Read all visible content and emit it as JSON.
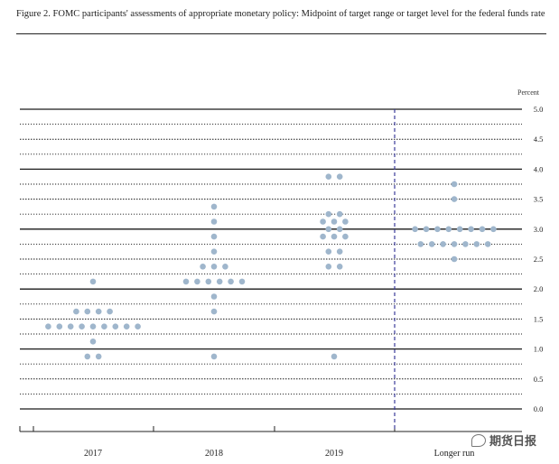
{
  "title": "Figure 2. FOMC participants' assessments of appropriate monetary policy: Midpoint of target range or target level for the federal funds rate",
  "watermark": "期货日报",
  "chart_data": {
    "type": "scatter",
    "unit_label": "Percent",
    "ylim": [
      0,
      5
    ],
    "yticks": [
      "5.0",
      "4.5",
      "4.0",
      "3.5",
      "3.0",
      "2.5",
      "2.0",
      "1.5",
      "1.0",
      "0.5",
      "0.0"
    ],
    "grid": true,
    "legend": "none",
    "dot_color": "#9fb6cc",
    "categories": [
      "2017",
      "2018",
      "2019",
      "Longer run"
    ],
    "series": [
      {
        "points": [
          {
            "x": "2017",
            "y": 2.125,
            "count": 1
          },
          {
            "x": "2017",
            "y": 1.625,
            "count": 4
          },
          {
            "x": "2017",
            "y": 1.375,
            "count": 9
          },
          {
            "x": "2017",
            "y": 1.125,
            "count": 1
          },
          {
            "x": "2017",
            "y": 0.875,
            "count": 2
          },
          {
            "x": "2018",
            "y": 3.375,
            "count": 1
          },
          {
            "x": "2018",
            "y": 3.125,
            "count": 1
          },
          {
            "x": "2018",
            "y": 2.875,
            "count": 1
          },
          {
            "x": "2018",
            "y": 2.625,
            "count": 1
          },
          {
            "x": "2018",
            "y": 2.375,
            "count": 3
          },
          {
            "x": "2018",
            "y": 2.125,
            "count": 6
          },
          {
            "x": "2018",
            "y": 1.875,
            "count": 1
          },
          {
            "x": "2018",
            "y": 1.625,
            "count": 1
          },
          {
            "x": "2018",
            "y": 0.875,
            "count": 1
          },
          {
            "x": "2019",
            "y": 3.875,
            "count": 2
          },
          {
            "x": "2019",
            "y": 3.25,
            "count": 2
          },
          {
            "x": "2019",
            "y": 3.125,
            "count": 3
          },
          {
            "x": "2019",
            "y": 3.0,
            "count": 2
          },
          {
            "x": "2019",
            "y": 2.875,
            "count": 3
          },
          {
            "x": "2019",
            "y": 2.625,
            "count": 2
          },
          {
            "x": "2019",
            "y": 2.375,
            "count": 2
          },
          {
            "x": "2019",
            "y": 0.875,
            "count": 1
          },
          {
            "x": "Longer run",
            "y": 3.75,
            "count": 1
          },
          {
            "x": "Longer run",
            "y": 3.5,
            "count": 1
          },
          {
            "x": "Longer run",
            "y": 3.0,
            "count": 8
          },
          {
            "x": "Longer run",
            "y": 2.75,
            "count": 7
          },
          {
            "x": "Longer run",
            "y": 2.5,
            "count": 1
          }
        ]
      }
    ]
  }
}
